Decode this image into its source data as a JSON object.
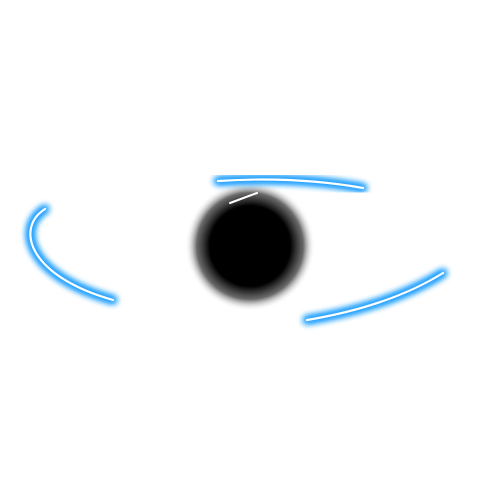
{
  "colors": {
    "background": "#ffffff",
    "glow": "#1a9cff",
    "line": "#ffffff",
    "pupil": "#000000"
  },
  "icon": "neon-eye-icon"
}
